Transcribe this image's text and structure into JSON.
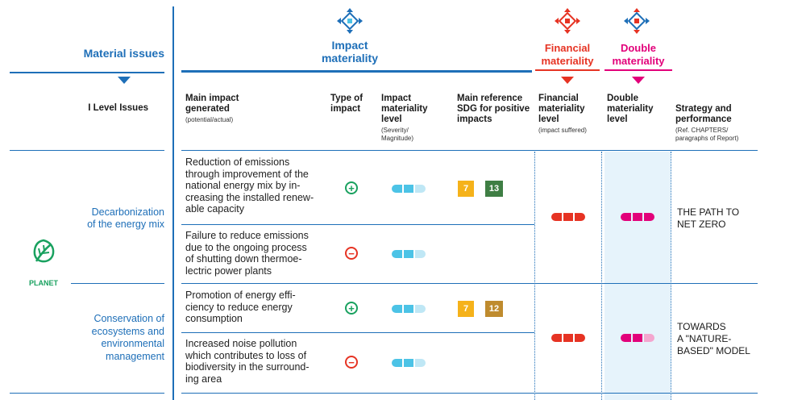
{
  "colors": {
    "blue": "#1e6fb8",
    "red": "#e63323",
    "magenta": "#e2007a",
    "light_blue": "#4cc3e6",
    "double_bg": "#e6f3fb",
    "green": "#19a15f"
  },
  "header": {
    "material_issues": "Material issues",
    "impact_materiality": [
      "Impact",
      "materiality"
    ],
    "financial_materiality": [
      "Financial",
      "materiality"
    ],
    "double_materiality": [
      "Double",
      "materiality"
    ],
    "level_issues": "I Level Issues",
    "columns": {
      "main_impact": [
        "Main impact",
        "generated"
      ],
      "main_impact_sub": "(potential/actual)",
      "type": [
        "Type of",
        "impact"
      ],
      "impact_level": [
        "Impact",
        "materiality",
        "level"
      ],
      "impact_level_sub": [
        "(Severity/",
        "Magnitude)"
      ],
      "sdg": [
        "Main reference",
        "SDG for positive",
        "impacts"
      ],
      "fin_level": [
        "Financial",
        "materiality",
        "level"
      ],
      "fin_level_sub": "(impact suffered)",
      "double_level": [
        "Double",
        "materiality",
        "level"
      ],
      "strategy": [
        "Strategy and",
        "performance"
      ],
      "strategy_sub": [
        "(Ref. CHAPTERS/",
        "paragraphs of Report)"
      ]
    }
  },
  "pillar": {
    "label": "PLANET",
    "icon": "leaf-icon"
  },
  "groups": [
    {
      "issue": [
        "Decarbonization",
        "of the energy mix"
      ],
      "strategy": [
        "THE PATH TO",
        "NET ZERO"
      ],
      "rows": [
        {
          "impact": [
            "Reduction of emissions",
            "through improvement of the",
            "national energy mix by in-",
            "creasing the installed renew-",
            "able capacity"
          ],
          "type": "positive",
          "type_symbol": "+",
          "sdgs": [
            {
              "num": "7",
              "color": "#f5b21a"
            },
            {
              "num": "13",
              "color": "#3f7e44"
            }
          ]
        },
        {
          "impact": [
            "Failure to reduce emissions",
            "due to the ongoing process",
            "of shutting down thermoe-",
            "lectric power plants"
          ],
          "type": "negative",
          "type_symbol": "−",
          "sdgs": []
        }
      ]
    },
    {
      "issue": [
        "Conservation of",
        "ecosystems and",
        "environmental",
        "management"
      ],
      "strategy": [
        "TOWARDS",
        "A \"NATURE-",
        "BASED\" MODEL"
      ],
      "rows": [
        {
          "impact": [
            "Promotion of energy effi-",
            "ciency to reduce energy",
            "consumption"
          ],
          "type": "positive",
          "type_symbol": "+",
          "sdgs": [
            {
              "num": "7",
              "color": "#f5b21a"
            },
            {
              "num": "12",
              "color": "#bf8b2e"
            }
          ]
        },
        {
          "impact": [
            "Increased noise pollution",
            "which contributes to loss of",
            "biodiversity in the surround-",
            "ing area"
          ],
          "type": "negative",
          "type_symbol": "−",
          "sdgs": []
        }
      ]
    }
  ]
}
